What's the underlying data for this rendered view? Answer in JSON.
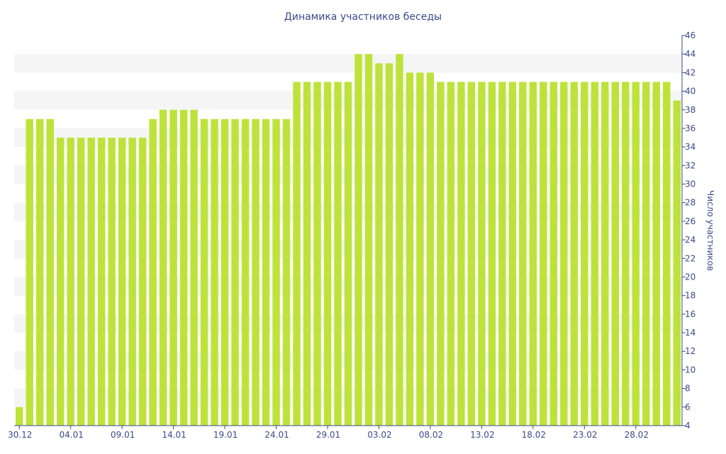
{
  "chart_data": {
    "type": "bar",
    "title": "Динамика участников беседы",
    "xlabel": "",
    "ylabel": "Число участников",
    "ylim": [
      4,
      46
    ],
    "y_ticks": [
      4,
      6,
      8,
      10,
      12,
      14,
      16,
      18,
      20,
      22,
      24,
      26,
      28,
      30,
      32,
      34,
      36,
      38,
      40,
      42,
      44,
      46
    ],
    "y_axis_position": "right",
    "grid": "alternating horizontal bands",
    "bar_color": "#bde33a",
    "x_tick_labels": [
      {
        "index": 0,
        "label": "30.12"
      },
      {
        "index": 5,
        "label": "04.01"
      },
      {
        "index": 10,
        "label": "09.01"
      },
      {
        "index": 15,
        "label": "14.01"
      },
      {
        "index": 20,
        "label": "19.01"
      },
      {
        "index": 25,
        "label": "24.01"
      },
      {
        "index": 30,
        "label": "29.01"
      },
      {
        "index": 35,
        "label": "03.02"
      },
      {
        "index": 40,
        "label": "08.02"
      },
      {
        "index": 45,
        "label": "13.02"
      },
      {
        "index": 50,
        "label": "18.02"
      },
      {
        "index": 55,
        "label": "23.02"
      },
      {
        "index": 60,
        "label": "28.02"
      }
    ],
    "values": [
      6,
      37,
      37,
      37,
      35,
      35,
      35,
      35,
      35,
      35,
      35,
      35,
      35,
      37,
      38,
      38,
      38,
      38,
      37,
      37,
      37,
      37,
      37,
      37,
      37,
      37,
      37,
      41,
      41,
      41,
      41,
      41,
      41,
      44,
      44,
      43,
      43,
      44,
      42,
      42,
      42,
      41,
      41,
      41,
      41,
      41,
      41,
      41,
      41,
      41,
      41,
      41,
      41,
      41,
      41,
      41,
      41,
      41,
      41,
      41,
      41,
      41,
      41,
      41,
      39
    ]
  }
}
